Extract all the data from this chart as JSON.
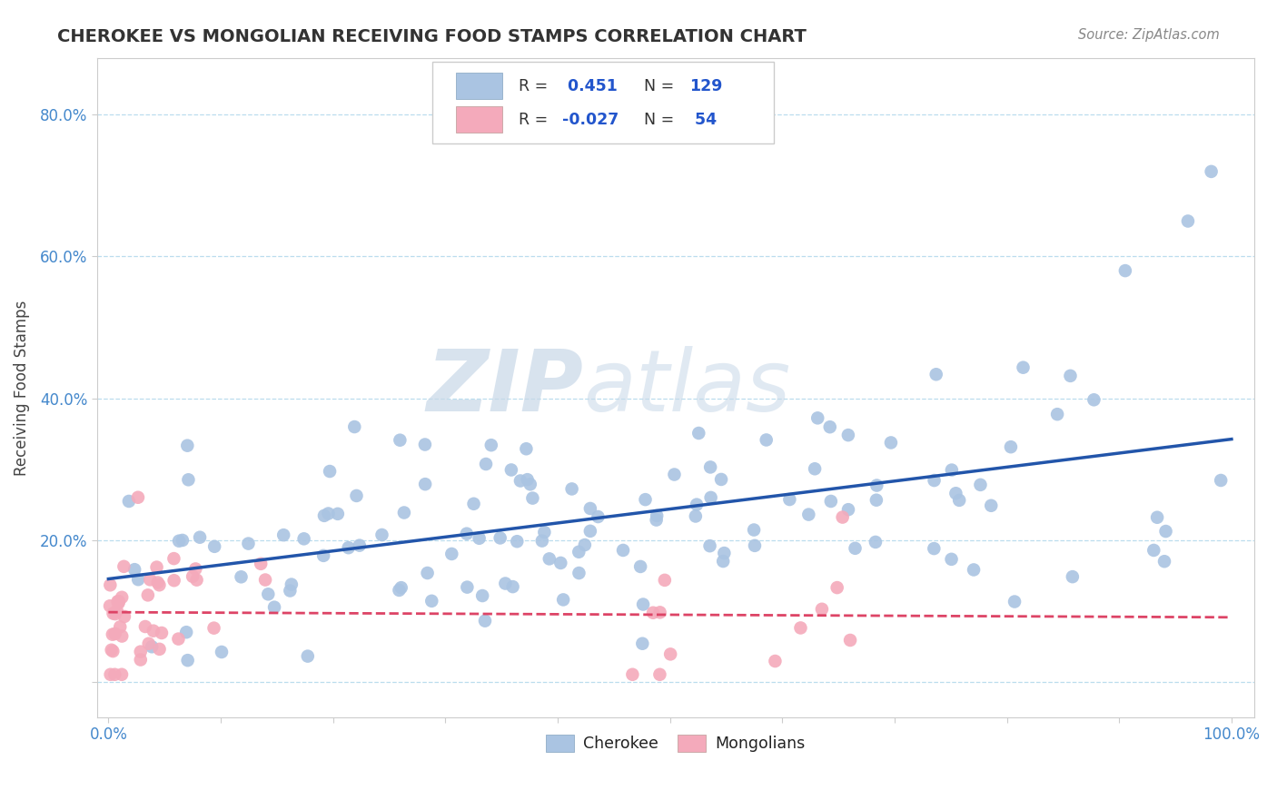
{
  "title": "CHEROKEE VS MONGOLIAN RECEIVING FOOD STAMPS CORRELATION CHART",
  "source_text": "Source: ZipAtlas.com",
  "ylabel": "Receiving Food Stamps",
  "cherokee_color": "#aac4e2",
  "mongolian_color": "#f4aabb",
  "cherokee_line_color": "#2255aa",
  "mongolian_line_color": "#dd4466",
  "legend_text_color": "#2255cc",
  "legend_label_color": "#333333",
  "title_color": "#333333",
  "source_color": "#888888",
  "tick_color": "#4488cc",
  "ylabel_color": "#444444",
  "watermark_color": "#ccddee",
  "grid_color": "#bbddee",
  "spine_color": "#cccccc",
  "bg_color": "#ffffff",
  "ylim": [
    -0.05,
    0.88
  ],
  "xlim": [
    -0.01,
    1.02
  ],
  "y_ticks": [
    0.0,
    0.2,
    0.4,
    0.6,
    0.8
  ],
  "y_tick_labels": [
    "",
    "20.0%",
    "40.0%",
    "60.0%",
    "80.0%"
  ],
  "x_tick_labels": [
    "0.0%",
    "",
    "",
    "",
    "",
    "",
    "",
    "",
    "",
    "",
    "100.0%"
  ]
}
